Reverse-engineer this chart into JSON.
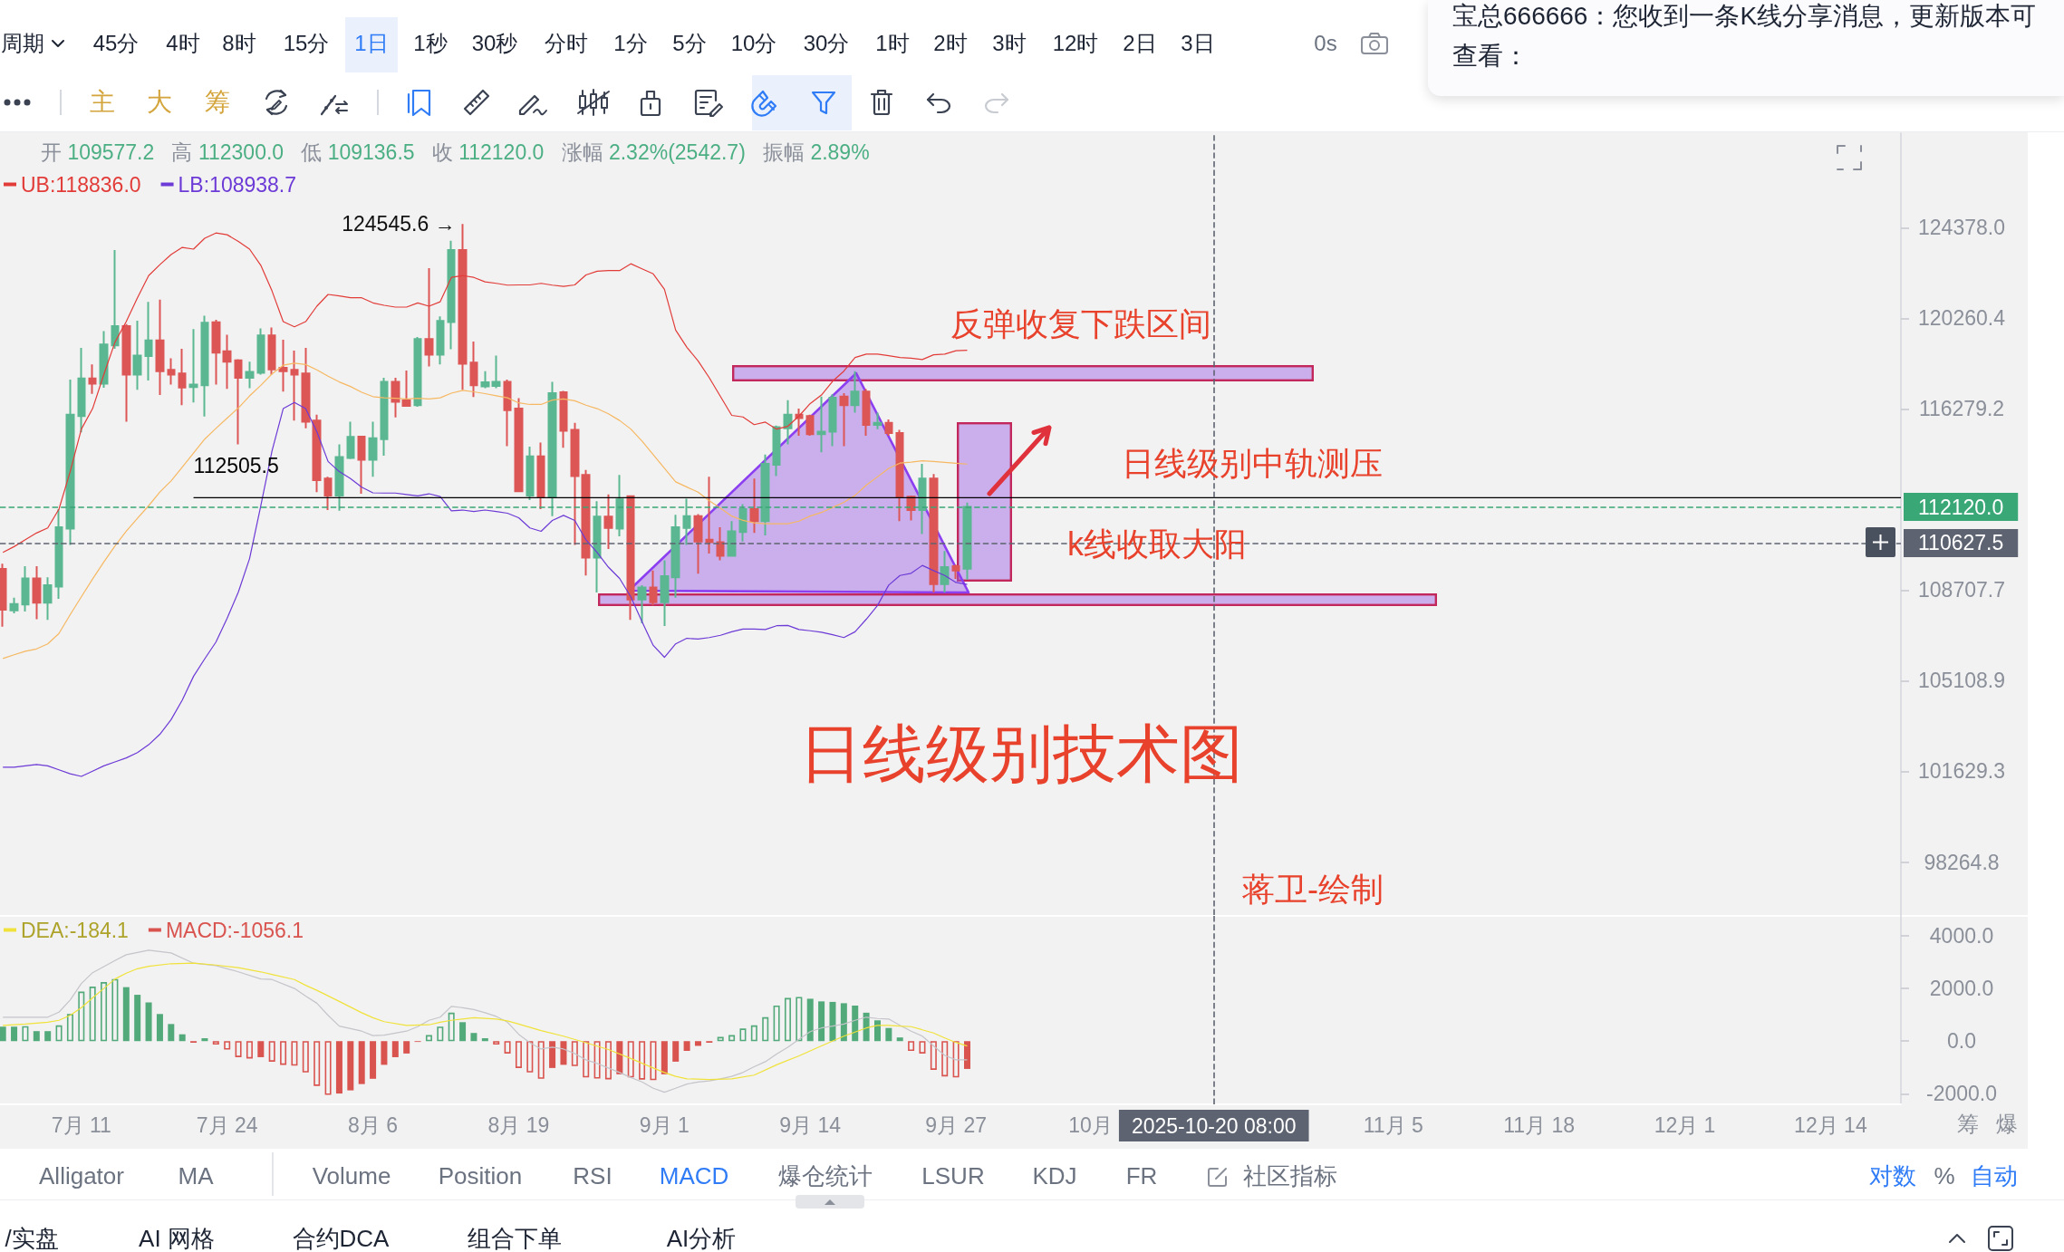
{
  "chart_data": [
    {
      "type": "other",
      "annotations": [
        "周期",
        "45分",
        "4时",
        "8时",
        "15分",
        "1日",
        "1秒",
        "30秒",
        "分时",
        "1分",
        "5分",
        "10分",
        "30分",
        "1时",
        "2时",
        "3时",
        "12时",
        "2日",
        "3日",
        "0s"
      ]
    },
    {
      "type": "other",
      "annotations": [
        "主",
        "大",
        "筹"
      ]
    },
    {
      "type": "other",
      "annotations": [
        "宝总666666：您收到一条K线分享消息，更新版本可查看："
      ]
    },
    {
      "type": "candlestick",
      "title": "日线级别技术图",
      "subtitle": "开 109577.2 高 112300.0 低 109136.5 收 112120.0 涨幅 2.32%(2542.7) 振幅 2.89%",
      "x": [
        "2025-07-04",
        "2025-07-05",
        "2025-07-06",
        "2025-07-07",
        "2025-07-08",
        "2025-07-09",
        "2025-07-10",
        "2025-07-11",
        "2025-07-12",
        "2025-07-13",
        "2025-07-14",
        "2025-07-15",
        "2025-07-16",
        "2025-07-17",
        "2025-07-18",
        "2025-07-19",
        "2025-07-20",
        "2025-07-21",
        "2025-07-22",
        "2025-07-23",
        "2025-07-24",
        "2025-07-25",
        "2025-07-26",
        "2025-07-27",
        "2025-07-28",
        "2025-07-29",
        "2025-07-30",
        "2025-07-31",
        "2025-08-01",
        "2025-08-02",
        "2025-08-03",
        "2025-08-04",
        "2025-08-05",
        "2025-08-06",
        "2025-08-07",
        "2025-08-08",
        "2025-08-09",
        "2025-08-10",
        "2025-08-11",
        "2025-08-12",
        "2025-08-13",
        "2025-08-14",
        "2025-08-15",
        "2025-08-16",
        "2025-08-17",
        "2025-08-18",
        "2025-08-19",
        "2025-08-20",
        "2025-08-21",
        "2025-08-22",
        "2025-08-23",
        "2025-08-24",
        "2025-08-25",
        "2025-08-26",
        "2025-08-27",
        "2025-08-28",
        "2025-08-29",
        "2025-08-30",
        "2025-08-31",
        "2025-09-01",
        "2025-09-02",
        "2025-09-03",
        "2025-09-04",
        "2025-09-05",
        "2025-09-06",
        "2025-09-07",
        "2025-09-08",
        "2025-09-09",
        "2025-09-10",
        "2025-09-11",
        "2025-09-12",
        "2025-09-13",
        "2025-09-14",
        "2025-09-15",
        "2025-09-16",
        "2025-09-17",
        "2025-09-18",
        "2025-09-19",
        "2025-09-20",
        "2025-09-21",
        "2025-09-22",
        "2025-09-23",
        "2025-09-24",
        "2025-09-25",
        "2025-09-26",
        "2025-09-27",
        "2025-09-28"
      ],
      "ohlc": [
        [
          109570,
          109780,
          107240,
          107920
        ],
        [
          107890,
          108400,
          107780,
          108150
        ],
        [
          108130,
          109680,
          107850,
          109180
        ],
        [
          109180,
          109680,
          107540,
          108200
        ],
        [
          108200,
          109230,
          107510,
          108910
        ],
        [
          108850,
          112030,
          108360,
          111280
        ],
        [
          111220,
          117550,
          110550,
          116030
        ],
        [
          115970,
          118940,
          115270,
          117600
        ],
        [
          117600,
          118220,
          116930,
          117370
        ],
        [
          117370,
          119690,
          117200,
          119090
        ],
        [
          119050,
          123350,
          118900,
          119910
        ],
        [
          119910,
          120000,
          115730,
          117770
        ],
        [
          117770,
          120150,
          117110,
          118600
        ],
        [
          118580,
          120990,
          117510,
          119280
        ],
        [
          119280,
          121100,
          116880,
          117920
        ],
        [
          117980,
          118490,
          117330,
          117770
        ],
        [
          117820,
          118900,
          116440,
          117210
        ],
        [
          117230,
          119780,
          116560,
          117330
        ],
        [
          117300,
          120370,
          115950,
          120060
        ],
        [
          120080,
          120190,
          117330,
          118730
        ],
        [
          118790,
          119530,
          117150,
          118340
        ],
        [
          118400,
          118450,
          114760,
          117630
        ],
        [
          117630,
          118340,
          117180,
          117890
        ],
        [
          117850,
          119810,
          117770,
          119500
        ],
        [
          119500,
          119850,
          117770,
          118000
        ],
        [
          118070,
          119310,
          117030,
          117920
        ],
        [
          117980,
          118820,
          115780,
          117770
        ],
        [
          117820,
          118940,
          115440,
          115730
        ],
        [
          115780,
          116030,
          112740,
          113240
        ],
        [
          113310,
          113380,
          111990,
          112600
        ],
        [
          112600,
          114760,
          111960,
          114220
        ],
        [
          114180,
          115730,
          114130,
          115080
        ],
        [
          115090,
          115120,
          112670,
          114100
        ],
        [
          114100,
          115730,
          113380,
          115020
        ],
        [
          114980,
          117630,
          114280,
          117450
        ],
        [
          117450,
          117630,
          115910,
          116590
        ],
        [
          116650,
          117950,
          116370,
          116410
        ],
        [
          116440,
          119430,
          116370,
          119340
        ],
        [
          119340,
          122520,
          118130,
          118640
        ],
        [
          118640,
          120340,
          118220,
          120140
        ],
        [
          120090,
          123770,
          118880,
          123350
        ],
        [
          123350,
          124545.6,
          117110,
          118250
        ],
        [
          118300,
          119230,
          116790,
          117300
        ],
        [
          117260,
          117920,
          117180,
          117430
        ],
        [
          117280,
          118600,
          117180,
          117450
        ],
        [
          117450,
          117550,
          114680,
          116220
        ],
        [
          116290,
          116740,
          112740,
          112780
        ],
        [
          112600,
          114660,
          112410,
          114250
        ],
        [
          114250,
          114830,
          112030,
          112530
        ],
        [
          112530,
          117450,
          111740,
          116960
        ],
        [
          117000,
          117060,
          114610,
          115340
        ],
        [
          115380,
          115680,
          110550,
          113410
        ],
        [
          113460,
          113670,
          109300,
          110030
        ],
        [
          110030,
          112360,
          108610,
          111720
        ],
        [
          111720,
          112640,
          110380,
          111250
        ],
        [
          111220,
          113460,
          110900,
          112430
        ],
        [
          112570,
          112600,
          107510,
          108330
        ],
        [
          108330,
          108910,
          107380,
          108810
        ],
        [
          108810,
          109500,
          108090,
          108220
        ],
        [
          108220,
          109920,
          107270,
          109270
        ],
        [
          109230,
          111790,
          108400,
          111280
        ],
        [
          111250,
          112460,
          110550,
          111740
        ],
        [
          111740,
          111820,
          109370,
          110690
        ],
        [
          110760,
          113380,
          110200,
          110660
        ],
        [
          110660,
          111280,
          109920,
          110100
        ],
        [
          110100,
          111530,
          110080,
          111110
        ],
        [
          111080,
          112240,
          110690,
          112030
        ],
        [
          112030,
          113310,
          111040,
          111530
        ],
        [
          111530,
          114320,
          110940,
          113930
        ],
        [
          113890,
          115560,
          113410,
          115490
        ],
        [
          115440,
          116660,
          114760,
          116030
        ],
        [
          116030,
          116290,
          115120,
          115880
        ],
        [
          115970,
          116030,
          115120,
          115190
        ],
        [
          115190,
          116810,
          114420,
          115300
        ],
        [
          115300,
          116910,
          114680,
          116760
        ],
        [
          116810,
          116960,
          114680,
          116440
        ],
        [
          116440,
          117920,
          116120,
          117030
        ],
        [
          117030,
          117150,
          115120,
          115590
        ],
        [
          115590,
          116120,
          115410,
          115680
        ],
        [
          115680,
          115820,
          115120,
          115240
        ],
        [
          115240,
          115380,
          111530,
          112550
        ],
        [
          112550,
          112600,
          111560,
          111990
        ],
        [
          111990,
          113930,
          111000,
          113310
        ],
        [
          113310,
          113500,
          108610,
          108950
        ],
        [
          108950,
          110300,
          108610,
          109640
        ],
        [
          109680,
          109740,
          109160,
          109500
        ],
        [
          109577.2,
          112300.0,
          109136.5,
          112120.0
        ]
      ],
      "colors": [
        "#dd5656",
        "#5bb792",
        "#5bb792",
        "#dd5656",
        "#5bb792",
        "#5bb792",
        "#5bb792",
        "#5bb792",
        "#dd5656",
        "#5bb792",
        "#5bb792",
        "#dd5656",
        "#5bb792",
        "#5bb792",
        "#dd5656",
        "#dd5656",
        "#dd5656",
        "#5bb792",
        "#5bb792",
        "#dd5656",
        "#dd5656",
        "#dd5656",
        "#5bb792",
        "#5bb792",
        "#dd5656",
        "#dd5656",
        "#dd5656",
        "#dd5656",
        "#dd5656",
        "#dd5656",
        "#5bb792",
        "#5bb792",
        "#dd5656",
        "#5bb792",
        "#5bb792",
        "#dd5656",
        "#dd5656",
        "#5bb792",
        "#dd5656",
        "#5bb792",
        "#5bb792",
        "#dd5656",
        "#dd5656",
        "#5bb792",
        "#5bb792",
        "#dd5656",
        "#dd5656",
        "#5bb792",
        "#dd5656",
        "#5bb792",
        "#dd5656",
        "#dd5656",
        "#dd5656",
        "#5bb792",
        "#dd5656",
        "#5bb792",
        "#dd5656",
        "#5bb792",
        "#dd5656",
        "#5bb792",
        "#5bb792",
        "#5bb792",
        "#dd5656",
        "#dd5656",
        "#dd5656",
        "#5bb792",
        "#5bb792",
        "#dd5656",
        "#5bb792",
        "#5bb792",
        "#5bb792",
        "#dd5656",
        "#dd5656",
        "#5bb792",
        "#5bb792",
        "#dd5656",
        "#5bb792",
        "#dd5656",
        "#5bb792",
        "#dd5656",
        "#dd5656",
        "#dd5656",
        "#5bb792",
        "#dd5656",
        "#5bb792",
        "#dd5656",
        "#5bb792"
      ],
      "series": [
        {
          "type": "line",
          "name": "UB:118836.0",
          "color": "#e23c39",
          "values": [
            110240,
            110480,
            110760,
            111040,
            111250,
            112030,
            113600,
            115410,
            116290,
            117770,
            119200,
            120110,
            121180,
            122180,
            122680,
            123140,
            123470,
            123390,
            123890,
            124130,
            124050,
            123740,
            123390,
            122650,
            121490,
            120110,
            119880,
            120110,
            120800,
            121330,
            121260,
            121180,
            121180,
            120950,
            120840,
            120760,
            120760,
            120950,
            120800,
            121000,
            122100,
            122180,
            122100,
            121900,
            121830,
            121750,
            121760,
            121760,
            121830,
            121750,
            121690,
            121760,
            122210,
            122380,
            122410,
            122410,
            122720,
            122490,
            122260,
            121560,
            119730,
            118970,
            118370,
            117630,
            116810,
            116000,
            115930,
            115600,
            115710,
            115410,
            115530,
            115970,
            116510,
            116880,
            117480,
            117920,
            118520,
            118670,
            118670,
            118600,
            118520,
            118490,
            118430,
            118640,
            118670,
            118820,
            118836.0
          ]
        },
        {
          "type": "line",
          "color": "#f6b862",
          "values": [
            105980,
            106130,
            106270,
            106360,
            106560,
            106970,
            107720,
            108440,
            109160,
            109850,
            110510,
            111110,
            111650,
            112170,
            112740,
            113210,
            113790,
            114390,
            114980,
            115440,
            115880,
            116320,
            116840,
            117300,
            117800,
            118180,
            118270,
            118210,
            117980,
            117700,
            117450,
            117250,
            117000,
            116810,
            116760,
            116740,
            116710,
            116740,
            116710,
            116760,
            116960,
            117080,
            117020,
            116940,
            116850,
            116760,
            116540,
            116470,
            116470,
            116660,
            116710,
            116630,
            116440,
            116290,
            116070,
            115780,
            115410,
            114900,
            114320,
            113740,
            113170,
            112950,
            112740,
            112380,
            112070,
            111740,
            111560,
            111460,
            111420,
            111420,
            111420,
            111530,
            111740,
            111890,
            112100,
            112310,
            112600,
            113030,
            113380,
            113740,
            113960,
            114000,
            114060,
            114030,
            113990,
            113950,
            113920
          ]
        },
        {
          "type": "line",
          "name": "LB:108938.7",
          "color": "#6c3ad6",
          "values": [
            101790,
            101790,
            101840,
            101890,
            101840,
            101690,
            101540,
            101440,
            101640,
            101840,
            101990,
            102140,
            102340,
            102640,
            103040,
            103600,
            104360,
            105280,
            105970,
            106630,
            107580,
            108630,
            109990,
            112170,
            114470,
            116290,
            116560,
            116290,
            115300,
            114030,
            113600,
            113310,
            112950,
            112710,
            112700,
            112700,
            112640,
            112580,
            112670,
            112550,
            111960,
            111990,
            111930,
            111990,
            111930,
            111860,
            111670,
            111250,
            111110,
            111560,
            111770,
            111560,
            110760,
            110240,
            109640,
            109180,
            108440,
            107440,
            106500,
            106030,
            106560,
            106780,
            106750,
            106810,
            106900,
            107040,
            107150,
            107150,
            107130,
            107280,
            107290,
            107130,
            107080,
            107020,
            106920,
            106810,
            107040,
            107540,
            108090,
            108910,
            109300,
            109390,
            109710,
            109500,
            109300,
            109020,
            108938.7
          ]
        },
        {
          "type": "line",
          "color": "#000000",
          "x": [
            "2025-07-21",
            "2025-12-20T06:30"
          ],
          "values": [
            112505.5,
            112505.5
          ],
          "value_labels": [
            "112505.5",
            null
          ]
        }
      ],
      "xlim": [
        "2025-07-03T17:50",
        "2025-12-20T06:30"
      ],
      "ylim": [
        96350,
        128820
      ],
      "log": true,
      "tick_labels": "y",
      "legend": "top left",
      "yticks": [
        {
          "value": 124378,
          "label": "124378.0"
        },
        {
          "value": 120260.4,
          "label": "120260.4"
        },
        {
          "value": 116279.2,
          "label": "116279.2"
        },
        {
          "value": 108707.7,
          "label": "108707.7"
        },
        {
          "value": 105108.9,
          "label": "105108.9"
        },
        {
          "value": 101629.3,
          "label": "101629.3"
        },
        {
          "value": 98264.8,
          "label": "98264.8"
        }
      ],
      "ref_lines": [
        {
          "axis": "y",
          "value": 112120.0,
          "label": "112120.0",
          "color": "#3aa776",
          "line_style": "dashed"
        },
        {
          "axis": "y",
          "value": 110627.5,
          "label": "110627.5",
          "color": "#5d6370",
          "line_style": "dashed"
        },
        {
          "axis": "x",
          "value": "2025-10-20",
          "color": "#5d6370",
          "line_style": "dashed"
        }
      ],
      "annotations": [
        {
          "text": "124545.6 →",
          "x": "2025-08-14",
          "y": 124545.6
        },
        "反弹收复下跌区间",
        "日线级别中轨测压",
        "k线收取大阳",
        "蒋卫-绘制"
      ]
    },
    {
      "type": "bar",
      "x": [
        "2025-07-04",
        "2025-07-05",
        "2025-07-06",
        "2025-07-07",
        "2025-07-08",
        "2025-07-09",
        "2025-07-10",
        "2025-07-11",
        "2025-07-12",
        "2025-07-13",
        "2025-07-14",
        "2025-07-15",
        "2025-07-16",
        "2025-07-17",
        "2025-07-18",
        "2025-07-19",
        "2025-07-20",
        "2025-07-21",
        "2025-07-22",
        "2025-07-23",
        "2025-07-24",
        "2025-07-25",
        "2025-07-26",
        "2025-07-27",
        "2025-07-28",
        "2025-07-29",
        "2025-07-30",
        "2025-07-31",
        "2025-08-01",
        "2025-08-02",
        "2025-08-03",
        "2025-08-04",
        "2025-08-05",
        "2025-08-06",
        "2025-08-07",
        "2025-08-08",
        "2025-08-09",
        "2025-08-10",
        "2025-08-11",
        "2025-08-12",
        "2025-08-13",
        "2025-08-14",
        "2025-08-15",
        "2025-08-16",
        "2025-08-17",
        "2025-08-18",
        "2025-08-19",
        "2025-08-20",
        "2025-08-21",
        "2025-08-22",
        "2025-08-23",
        "2025-08-24",
        "2025-08-25",
        "2025-08-26",
        "2025-08-27",
        "2025-08-28",
        "2025-08-29",
        "2025-08-30",
        "2025-08-31",
        "2025-09-01",
        "2025-09-02",
        "2025-09-03",
        "2025-09-04",
        "2025-09-05",
        "2025-09-06",
        "2025-09-07",
        "2025-09-08",
        "2025-09-09",
        "2025-09-10",
        "2025-09-11",
        "2025-09-12",
        "2025-09-13",
        "2025-09-14",
        "2025-09-15",
        "2025-09-16",
        "2025-09-17",
        "2025-09-18",
        "2025-09-19",
        "2025-09-20",
        "2025-09-21",
        "2025-09-22",
        "2025-09-23",
        "2025-09-24",
        "2025-09-25",
        "2025-09-26",
        "2025-09-27",
        "2025-09-28"
      ],
      "series": [
        {
          "type": "line",
          "color": "#c4c4ca",
          "x": [
            "2025-07-04",
            "2025-07-06",
            "2025-07-08",
            "2025-07-09",
            "2025-07-10",
            "2025-07-11",
            "2025-07-12",
            "2025-07-14",
            "2025-07-15",
            "2025-07-17",
            "2025-07-19",
            "2025-07-21",
            "2025-07-23",
            "2025-07-25",
            "2025-07-27",
            "2025-07-28",
            "2025-07-30",
            "2025-07-31",
            "2025-08-01",
            "2025-08-02",
            "2025-08-03",
            "2025-08-05",
            "2025-08-06",
            "2025-08-07",
            "2025-08-09",
            "2025-08-10",
            "2025-08-11",
            "2025-08-12",
            "2025-08-13",
            "2025-08-14",
            "2025-08-15",
            "2025-08-16",
            "2025-08-17",
            "2025-08-18",
            "2025-08-19",
            "2025-08-20",
            "2025-08-21",
            "2025-08-22",
            "2025-08-23",
            "2025-08-24",
            "2025-08-25",
            "2025-08-26",
            "2025-08-27",
            "2025-08-28",
            "2025-08-29",
            "2025-08-30",
            "2025-08-31",
            "2025-09-01",
            "2025-09-02",
            "2025-09-03",
            "2025-09-04",
            "2025-09-05",
            "2025-09-06",
            "2025-09-07",
            "2025-09-08",
            "2025-09-09",
            "2025-09-10",
            "2025-09-11",
            "2025-09-12",
            "2025-09-13",
            "2025-09-14",
            "2025-09-15",
            "2025-09-16",
            "2025-09-17",
            "2025-09-18",
            "2025-09-19",
            "2025-09-20",
            "2025-09-21",
            "2025-09-22",
            "2025-09-23",
            "2025-09-24",
            "2025-09-25",
            "2025-09-26",
            "2025-09-27",
            "2025-09-28"
          ],
          "values": [
            910,
            910,
            910,
            1100,
            1560,
            2190,
            2600,
            3060,
            3280,
            3450,
            3350,
            2960,
            2870,
            2630,
            2360,
            2340,
            2000,
            1710,
            1440,
            980,
            570,
            380,
            210,
            230,
            380,
            550,
            790,
            910,
            1320,
            1270,
            1200,
            1080,
            940,
            720,
            260,
            -60,
            -300,
            -230,
            -300,
            -470,
            -710,
            -850,
            -1020,
            -1190,
            -1380,
            -1550,
            -1790,
            -1940,
            -1790,
            -1630,
            -1550,
            -1510,
            -1430,
            -1340,
            -1190,
            -970,
            -780,
            -490,
            -230,
            70,
            360,
            500,
            570,
            650,
            790,
            910,
            860,
            840,
            600,
            380,
            190,
            -180,
            -540,
            -710,
            -710
          ]
        },
        {
          "type": "line",
          "name": "DEA:-184.1",
          "color": "#f0e23a",
          "x": [
            "2025-07-04",
            "2025-07-06",
            "2025-07-08",
            "2025-07-09",
            "2025-07-10",
            "2025-07-11",
            "2025-07-12",
            "2025-07-13",
            "2025-07-14",
            "2025-07-15",
            "2025-07-16",
            "2025-07-17",
            "2025-07-19",
            "2025-07-21",
            "2025-07-23",
            "2025-07-25",
            "2025-07-27",
            "2025-07-28",
            "2025-07-30",
            "2025-07-31",
            "2025-08-01",
            "2025-08-03",
            "2025-08-05",
            "2025-08-06",
            "2025-08-07",
            "2025-08-09",
            "2025-08-11",
            "2025-08-12",
            "2025-08-13",
            "2025-08-15",
            "2025-08-17",
            "2025-08-18",
            "2025-08-19",
            "2025-08-21",
            "2025-08-23",
            "2025-08-25",
            "2025-08-27",
            "2025-08-29",
            "2025-08-31",
            "2025-09-01",
            "2025-09-02",
            "2025-09-03",
            "2025-09-05",
            "2025-09-07",
            "2025-09-09",
            "2025-09-11",
            "2025-09-13",
            "2025-09-15",
            "2025-09-17",
            "2025-09-19",
            "2025-09-20",
            "2025-09-21",
            "2025-09-22",
            "2025-09-23",
            "2025-09-24",
            "2025-09-25",
            "2025-09-26",
            "2025-09-27",
            "2025-09-28"
          ],
          "values": [
            600,
            650,
            720,
            790,
            980,
            1270,
            1640,
            2000,
            2360,
            2580,
            2750,
            2840,
            2940,
            2960,
            2890,
            2790,
            2630,
            2530,
            2340,
            2120,
            1930,
            1510,
            1080,
            890,
            740,
            600,
            620,
            720,
            790,
            890,
            840,
            770,
            650,
            400,
            190,
            -60,
            -320,
            -660,
            -1020,
            -1190,
            -1340,
            -1430,
            -1460,
            -1430,
            -1290,
            -900,
            -560,
            -180,
            190,
            500,
            600,
            600,
            570,
            550,
            430,
            310,
            120,
            -50,
            -184.1
          ]
        },
        {
          "type": "bar",
          "name": "MACD:-1056.1",
          "values": [
            550,
            550,
            570,
            380,
            380,
            600,
            1030,
            1880,
            2070,
            2240,
            2360,
            2050,
            1760,
            1470,
            1030,
            650,
            260,
            -60,
            110,
            -130,
            -320,
            -610,
            -660,
            -610,
            -780,
            -900,
            -930,
            -1190,
            -1700,
            -2040,
            -1990,
            -1870,
            -1630,
            -1430,
            -900,
            -610,
            -470,
            -30,
            230,
            550,
            1080,
            720,
            310,
            110,
            -130,
            -470,
            -1020,
            -1190,
            -1430,
            -1020,
            -900,
            -950,
            -1380,
            -1420,
            -1450,
            -1260,
            -1380,
            -1460,
            -1480,
            -1260,
            -780,
            -370,
            -180,
            -60,
            160,
            230,
            480,
            600,
            910,
            1350,
            1640,
            1680,
            1610,
            1510,
            1490,
            1440,
            1350,
            1080,
            790,
            500,
            140,
            -370,
            -470,
            -1090,
            -1340,
            -1380,
            -1056.1
          ],
          "colors": [
            "#52a97a",
            "#52a97a",
            "#52a97a",
            "#52a97a",
            "#52a97a",
            "#52a97a",
            "#52a97a",
            "#52a97a",
            "#52a97a",
            "#52a97a",
            "#52a97a",
            "#52a97a",
            "#52a97a",
            "#52a97a",
            "#52a97a",
            "#52a97a",
            "#52a97a",
            "#d9534f",
            "#52a97a",
            "#d9534f",
            "#d9534f",
            "#d9534f",
            "#d9534f",
            "#d9534f",
            "#d9534f",
            "#d9534f",
            "#d9534f",
            "#d9534f",
            "#d9534f",
            "#d9534f",
            "#d9534f",
            "#d9534f",
            "#d9534f",
            "#d9534f",
            "#d9534f",
            "#d9534f",
            "#d9534f",
            "#d9534f",
            "#52a97a",
            "#52a97a",
            "#52a97a",
            "#52a97a",
            "#52a97a",
            "#52a97a",
            "#d9534f",
            "#d9534f",
            "#d9534f",
            "#d9534f",
            "#d9534f",
            "#d9534f",
            "#d9534f",
            "#d9534f",
            "#d9534f",
            "#d9534f",
            "#d9534f",
            "#d9534f",
            "#d9534f",
            "#d9534f",
            "#d9534f",
            "#d9534f",
            "#d9534f",
            "#d9534f",
            "#d9534f",
            "#d9534f",
            "#52a97a",
            "#52a97a",
            "#52a97a",
            "#52a97a",
            "#52a97a",
            "#52a97a",
            "#52a97a",
            "#52a97a",
            "#52a97a",
            "#52a97a",
            "#52a97a",
            "#52a97a",
            "#52a97a",
            "#52a97a",
            "#52a97a",
            "#52a97a",
            "#52a97a",
            "#d9534f",
            "#d9534f",
            "#d9534f",
            "#d9534f",
            "#d9534f",
            "#d9534f"
          ]
        }
      ],
      "xlim": [
        "2025-07-03T17:50",
        "2025-12-20T06:30"
      ],
      "ylim": [
        -2400,
        4790
      ],
      "legend": "top left",
      "xticks": [
        {
          "value": "2025-07-11",
          "label": "7月 11"
        },
        {
          "value": "2025-07-24",
          "label": "7月 24"
        },
        {
          "value": "2025-08-06",
          "label": "8月 6"
        },
        {
          "value": "2025-08-19",
          "label": "8月 19"
        },
        {
          "value": "2025-09-01",
          "label": "9月 1"
        },
        {
          "value": "2025-09-14",
          "label": "9月 14"
        },
        {
          "value": "2025-09-27",
          "label": "9月 27"
        },
        {
          "value": "2025-10-09",
          "label": "10月"
        },
        {
          "value": "2025-11-05",
          "label": "11月 5"
        },
        {
          "value": "2025-11-18",
          "label": "11月 18"
        },
        {
          "value": "2025-12-01",
          "label": "12月 1"
        },
        {
          "value": "2025-12-14",
          "label": "12月 14"
        }
      ],
      "yticks": [
        {
          "value": 4000,
          "label": "4000.0"
        },
        {
          "value": 2000,
          "label": "2000.0"
        },
        {
          "value": 0,
          "label": "0.0"
        },
        {
          "value": -2000,
          "label": "-2000.0"
        }
      ],
      "ref_lines": [
        {
          "axis": "x",
          "value": "2025-10-20",
          "label": "2025-10-20 08:00",
          "color": "#5d6370",
          "line_style": "dashed"
        }
      ]
    },
    {
      "type": "other",
      "annotations": [
        "Alligator",
        "MA",
        "Volume",
        "Position",
        "RSI",
        "MACD",
        "爆仓统计",
        "LSUR",
        "KDJ",
        "FR",
        "社区指标",
        "对数",
        "%",
        "自动"
      ]
    },
    {
      "type": "other",
      "annotations": [
        "/实盘",
        "AI 网格",
        "合约DCA",
        "组合下单",
        "AI分析"
      ]
    },
    {
      "type": "other",
      "annotations": [
        "筹",
        "爆"
      ]
    }
  ]
}
